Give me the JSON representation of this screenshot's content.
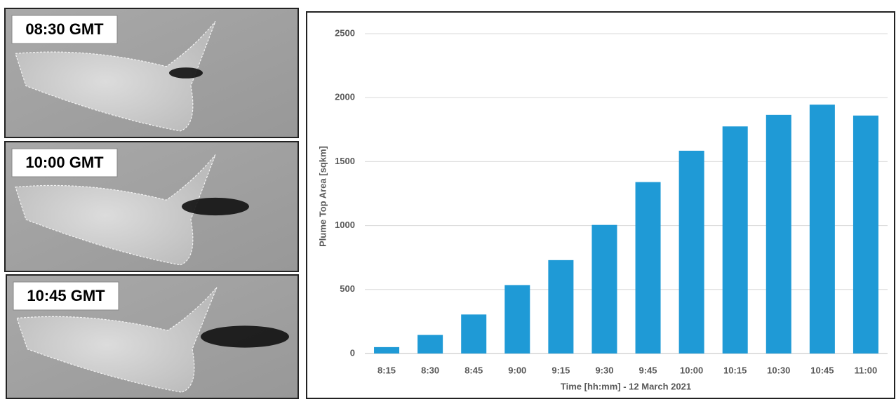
{
  "panels": [
    {
      "label": "08:30 GMT"
    },
    {
      "label": "10:00 GMT"
    },
    {
      "label": "10:45 GMT"
    }
  ],
  "chart_data": {
    "type": "bar",
    "categories": [
      "8:15",
      "8:30",
      "8:45",
      "9:00",
      "9:15",
      "9:30",
      "9:45",
      "10:00",
      "10:15",
      "10:30",
      "10:45",
      "11:00"
    ],
    "values": [
      50,
      145,
      305,
      535,
      730,
      1005,
      1340,
      1585,
      1775,
      1865,
      1945,
      1860
    ],
    "color": "#1f9ad6",
    "ylabel": "Plume Top Area [sqkm]",
    "xlabel": "Time [hh:mm] - 12 March 2021",
    "ylim": [
      0,
      2500
    ],
    "yticks": [
      0,
      500,
      1000,
      1500,
      2000,
      2500
    ],
    "grid": true
  }
}
